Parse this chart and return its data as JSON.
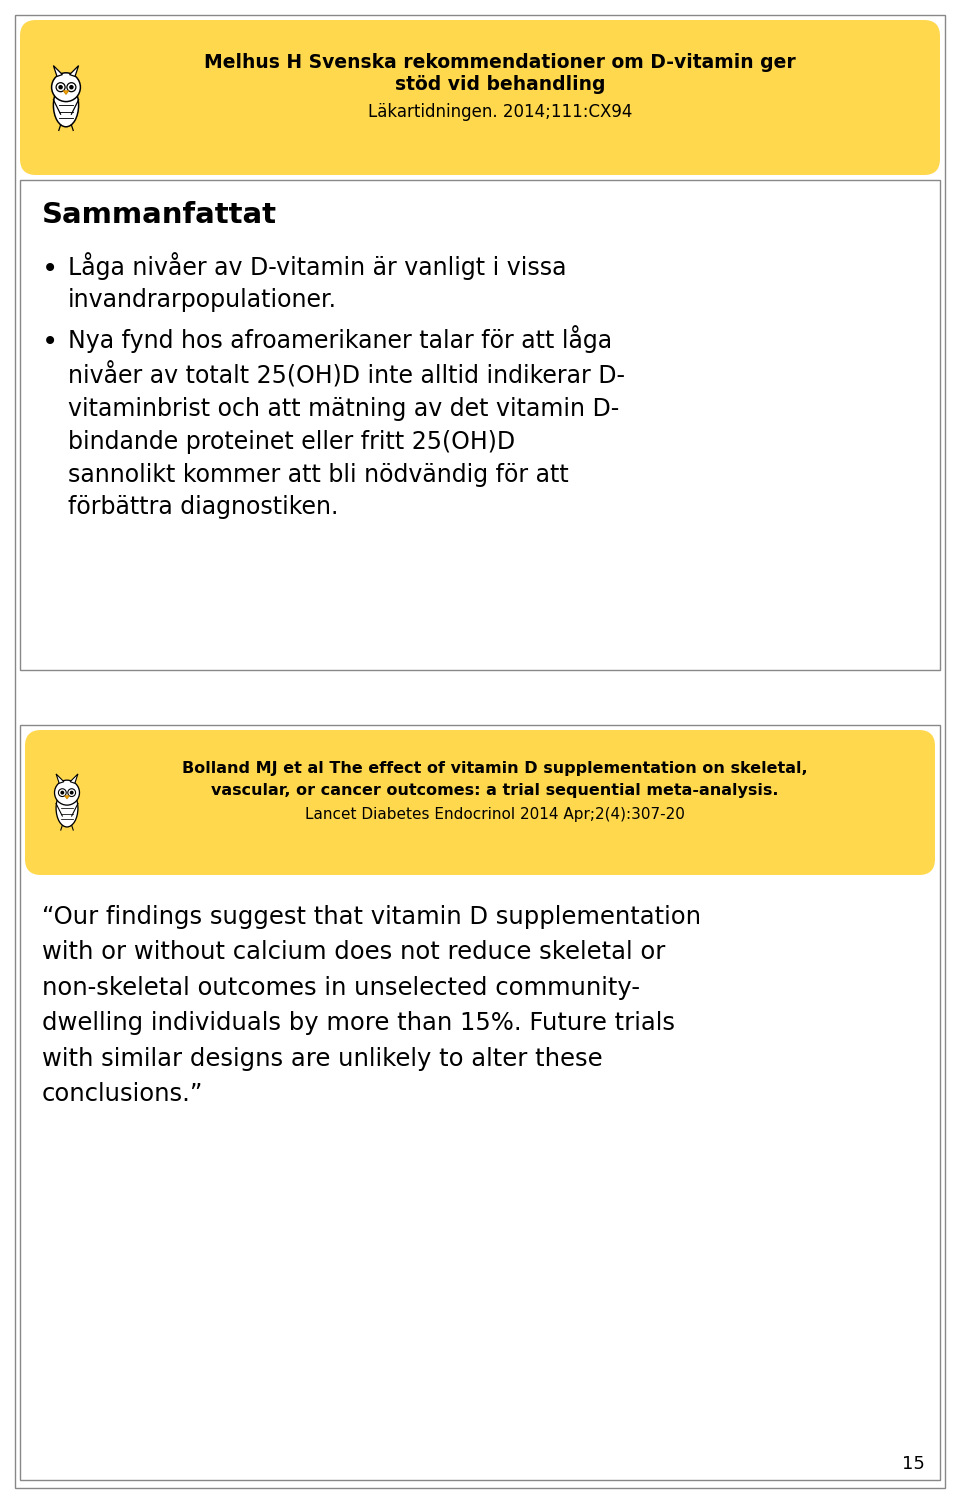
{
  "bg_color": "#ffffff",
  "slide_border_color": "#4a4a4a",
  "yellow_color": "#FFD84D",
  "box1_title_line1": "Melhus H Svenska rekommendationer om D-vitamin ger",
  "box1_title_line2": "stöd vid behandling",
  "box1_subtitle": "Läkartidningen. 2014;111:CX94",
  "section1_heading": "Sammanfattat",
  "bullet1": "Låga nivåer av D-vitamin är vanligt i vissa\ninvandrarpopulationer.",
  "bullet2": "Nya fynd hos afroamerikaner talar för att låga\nnivåer av totalt 25(OH)D inte alltid indikerar D-\nvitaminbrist och att mätning av det vitamin D-\nbindande proteinet eller fritt 25(OH)D\nsannolikt kommer att bli nödvändig för att\nförbättra diagnostiken.",
  "box2_line1": "Bolland MJ et al The effect of vitamin D supplementation on skeletal,",
  "box2_line2": "vascular, or cancer outcomes: a trial sequential meta-analysis.",
  "box2_line3": "Lancet Diabetes Endocrinol 2014 Apr;2(4):307-20",
  "quote_text": "“Our findings suggest that vitamin D supplementation\nwith or without calcium does not reduce skeletal or\nnon-skeletal outcomes in unselected community-\ndwelling individuals by more than 15%. Future trials\nwith similar designs are unlikely to alter these\nconclusions.”",
  "page_number": "15"
}
